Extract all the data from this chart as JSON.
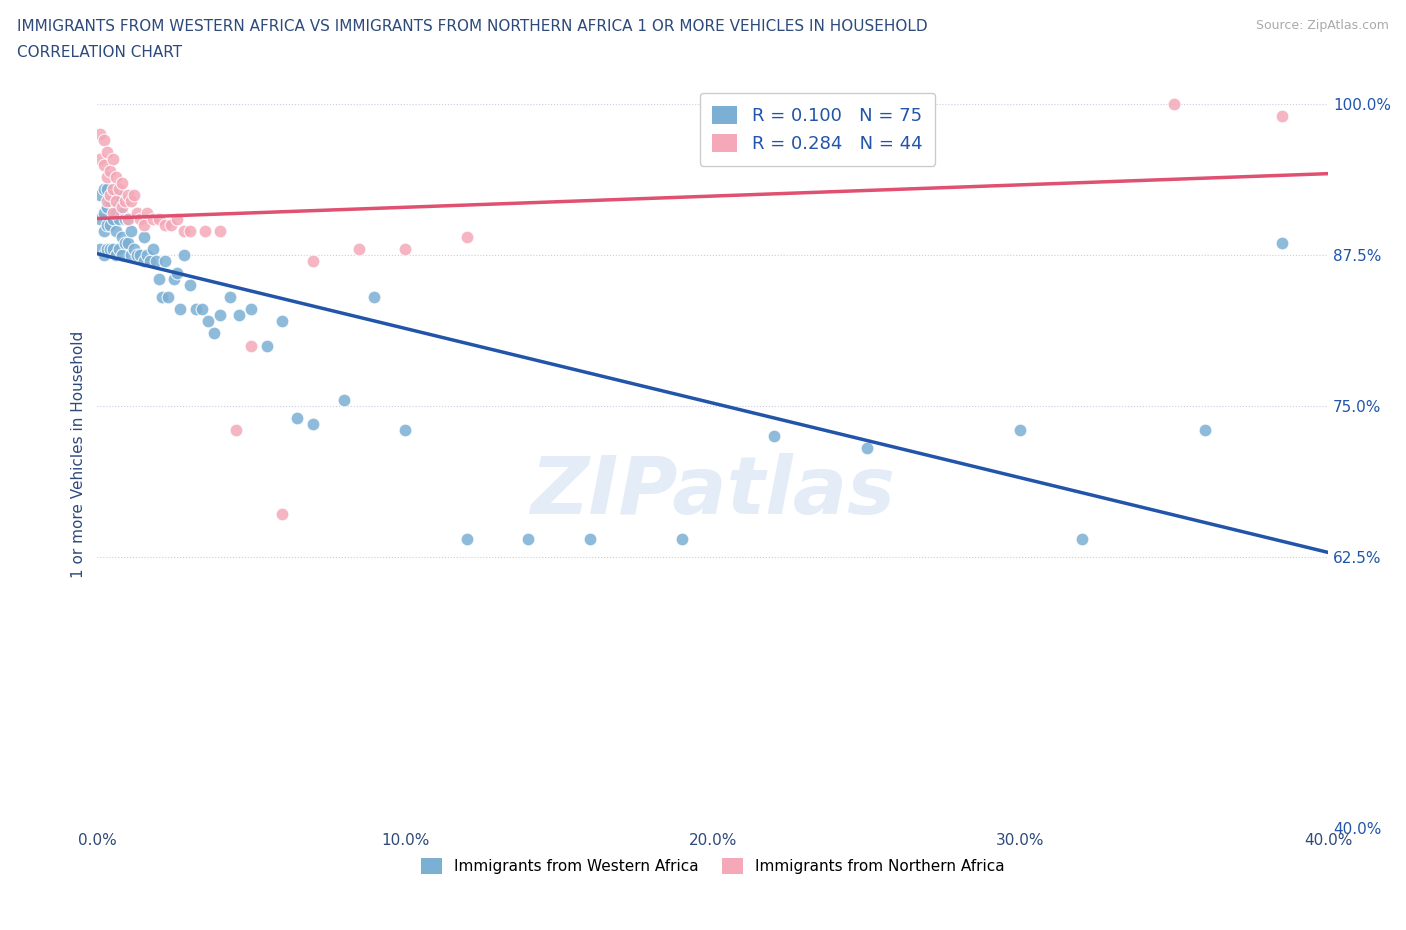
{
  "title_line1": "IMMIGRANTS FROM WESTERN AFRICA VS IMMIGRANTS FROM NORTHERN AFRICA 1 OR MORE VEHICLES IN HOUSEHOLD",
  "title_line2": "CORRELATION CHART",
  "title_color": "#2d4a7a",
  "source_text": "Source: ZipAtlas.com",
  "ylabel": "1 or more Vehicles in Household",
  "xlim": [
    0.0,
    0.4
  ],
  "ylim": [
    0.4,
    1.02
  ],
  "xticks": [
    0.0,
    0.1,
    0.2,
    0.3,
    0.4
  ],
  "yticks": [
    0.4,
    0.625,
    0.75,
    0.875,
    1.0
  ],
  "ytick_labels": [
    "40.0%",
    "62.5%",
    "75.0%",
    "87.5%",
    "100.0%"
  ],
  "xtick_labels": [
    "0.0%",
    "10.0%",
    "20.0%",
    "30.0%",
    "40.0%"
  ],
  "r_blue": 0.1,
  "n_blue": 75,
  "r_pink": 0.284,
  "n_pink": 44,
  "blue_color": "#7bafd4",
  "pink_color": "#f4a8b8",
  "blue_line_color": "#2255aa",
  "pink_line_color": "#e05070",
  "watermark": "ZIPatlas",
  "blue_x": [
    0.001,
    0.001,
    0.001,
    0.002,
    0.002,
    0.002,
    0.002,
    0.003,
    0.003,
    0.003,
    0.003,
    0.004,
    0.004,
    0.004,
    0.005,
    0.005,
    0.005,
    0.006,
    0.006,
    0.006,
    0.007,
    0.007,
    0.007,
    0.008,
    0.008,
    0.008,
    0.009,
    0.009,
    0.01,
    0.01,
    0.011,
    0.011,
    0.012,
    0.013,
    0.014,
    0.015,
    0.015,
    0.016,
    0.017,
    0.018,
    0.019,
    0.02,
    0.021,
    0.022,
    0.023,
    0.025,
    0.026,
    0.027,
    0.028,
    0.03,
    0.032,
    0.034,
    0.036,
    0.038,
    0.04,
    0.043,
    0.046,
    0.05,
    0.055,
    0.06,
    0.065,
    0.07,
    0.08,
    0.09,
    0.1,
    0.12,
    0.14,
    0.16,
    0.19,
    0.22,
    0.25,
    0.3,
    0.32,
    0.36,
    0.385
  ],
  "blue_y": [
    0.925,
    0.905,
    0.88,
    0.93,
    0.91,
    0.895,
    0.875,
    0.93,
    0.915,
    0.9,
    0.88,
    0.92,
    0.9,
    0.88,
    0.925,
    0.905,
    0.88,
    0.91,
    0.895,
    0.875,
    0.925,
    0.905,
    0.88,
    0.91,
    0.89,
    0.875,
    0.905,
    0.885,
    0.905,
    0.885,
    0.895,
    0.875,
    0.88,
    0.875,
    0.875,
    0.89,
    0.87,
    0.875,
    0.87,
    0.88,
    0.87,
    0.855,
    0.84,
    0.87,
    0.84,
    0.855,
    0.86,
    0.83,
    0.875,
    0.85,
    0.83,
    0.83,
    0.82,
    0.81,
    0.825,
    0.84,
    0.825,
    0.83,
    0.8,
    0.82,
    0.74,
    0.735,
    0.755,
    0.84,
    0.73,
    0.64,
    0.64,
    0.64,
    0.64,
    0.725,
    0.715,
    0.73,
    0.64,
    0.73,
    0.885
  ],
  "pink_x": [
    0.001,
    0.001,
    0.002,
    0.002,
    0.003,
    0.003,
    0.003,
    0.004,
    0.004,
    0.005,
    0.005,
    0.005,
    0.006,
    0.006,
    0.007,
    0.008,
    0.008,
    0.009,
    0.01,
    0.01,
    0.011,
    0.012,
    0.013,
    0.014,
    0.015,
    0.016,
    0.018,
    0.02,
    0.022,
    0.024,
    0.026,
    0.028,
    0.03,
    0.035,
    0.04,
    0.045,
    0.05,
    0.06,
    0.07,
    0.085,
    0.1,
    0.12,
    0.35,
    0.385
  ],
  "pink_y": [
    0.975,
    0.955,
    0.97,
    0.95,
    0.96,
    0.94,
    0.92,
    0.945,
    0.925,
    0.955,
    0.93,
    0.91,
    0.94,
    0.92,
    0.93,
    0.935,
    0.915,
    0.92,
    0.925,
    0.905,
    0.92,
    0.925,
    0.91,
    0.905,
    0.9,
    0.91,
    0.905,
    0.905,
    0.9,
    0.9,
    0.905,
    0.895,
    0.895,
    0.895,
    0.895,
    0.73,
    0.8,
    0.66,
    0.87,
    0.88,
    0.88,
    0.89,
    1.0,
    0.99
  ]
}
